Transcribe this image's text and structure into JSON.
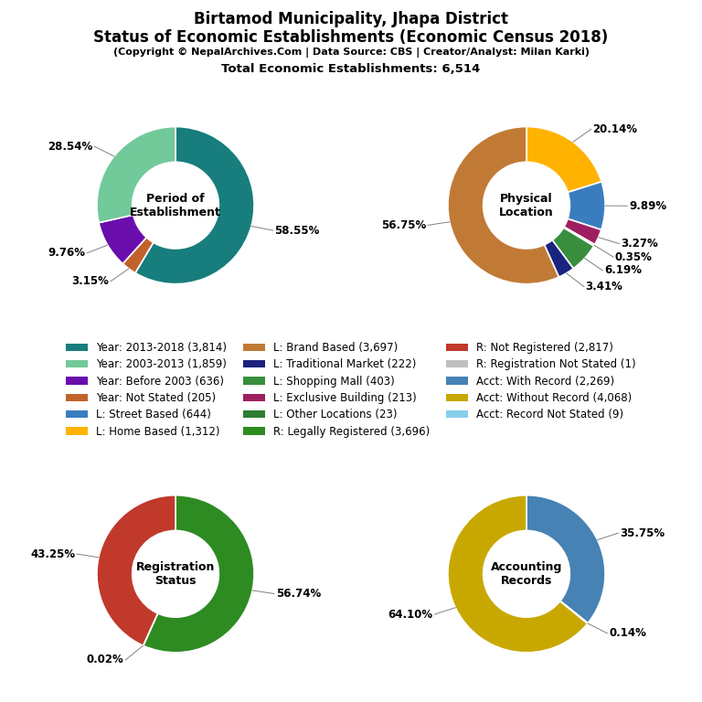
{
  "title": "Birtamod Municipality, Jhapa District\nStatus of Economic Establishments (Economic Census 2018)",
  "subtitle": [
    "(Copyright © NepalArchives.Com | Data Source: CBS | Creator/Analyst: Milan Karki)",
    "Total Economic Establishments: 6,514"
  ],
  "legend": "center",
  "legend_entries": [
    {
      "name": "Year: 2013-2018 (3,814)",
      "color": "#177d7d"
    },
    {
      "name": "Year: 2003-2013 (1,859)",
      "color": "#72C99A"
    },
    {
      "name": "Year: Before 2003 (636)",
      "color": "#6A0DAD"
    },
    {
      "name": "Year: Not Stated (205)",
      "color": "#C1622B"
    },
    {
      "name": "L: Street Based (644)",
      "color": "#3A7DBF"
    },
    {
      "name": "L: Home Based (1,312)",
      "color": "#FFB300"
    },
    {
      "name": "L: Brand Based (3,697)",
      "color": "#C17A35"
    },
    {
      "name": "L: Traditional Market (222)",
      "color": "#1A237E"
    },
    {
      "name": "L: Shopping Mall (403)",
      "color": "#388E3C"
    },
    {
      "name": "L: Exclusive Building (213)",
      "color": "#9E1F60"
    },
    {
      "name": "L: Other Locations (23)",
      "color": "#2E7D32"
    },
    {
      "name": "R: Legally Registered (3,696)",
      "color": "#2E8B22"
    },
    {
      "name": "R: Not Registered (2,817)",
      "color": "#C0392B"
    },
    {
      "name": "R: Registration Not Stated (1)",
      "color": "#C0C0C0"
    },
    {
      "name": "Acct: With Record (2,269)",
      "color": "#4682B4"
    },
    {
      "name": "Acct: Without Record (4,068)",
      "color": "#C8A800"
    },
    {
      "name": "Acct: Record Not Stated (9)",
      "color": "#87CEEB"
    }
  ],
  "chart_data": [
    {
      "type": "pie",
      "title": "Period of\nEstablishment",
      "values": [
        58.55,
        3.15,
        9.76,
        28.54
      ],
      "value_labels": [
        "58.55%",
        "3.15%",
        "9.76%",
        "28.54%"
      ],
      "colors": [
        "#177d7d",
        "#C1622B",
        "#6A0DAD",
        "#72C99A"
      ],
      "data_labels": true
    },
    {
      "type": "pie",
      "title": "Physical\nLocation",
      "values": [
        20.14,
        9.89,
        3.27,
        0.35,
        6.19,
        3.41,
        56.75
      ],
      "value_labels": [
        "20.14%",
        "9.89%",
        "3.27%",
        "0.35%",
        "6.19%",
        "3.41%",
        "56.75%"
      ],
      "colors": [
        "#FFB300",
        "#3A7DBF",
        "#9E1F60",
        "#2E7D32",
        "#388E3C",
        "#1A237E",
        "#C17A35"
      ],
      "data_labels": true
    },
    {
      "type": "pie",
      "title": "Registration\nStatus",
      "values": [
        56.74,
        0.02,
        43.25
      ],
      "value_labels": [
        "56.74%",
        "0.02%",
        "43.25%"
      ],
      "colors": [
        "#2E8B22",
        "#C0C0C0",
        "#C0392B"
      ],
      "data_labels": true
    },
    {
      "type": "pie",
      "title": "Accounting\nRecords",
      "values": [
        35.75,
        0.14,
        64.1
      ],
      "value_labels": [
        "35.75%",
        "0.14%",
        "64.10%"
      ],
      "colors": [
        "#4682B4",
        "#87CEEB",
        "#C8A800"
      ],
      "data_labels": true
    }
  ]
}
